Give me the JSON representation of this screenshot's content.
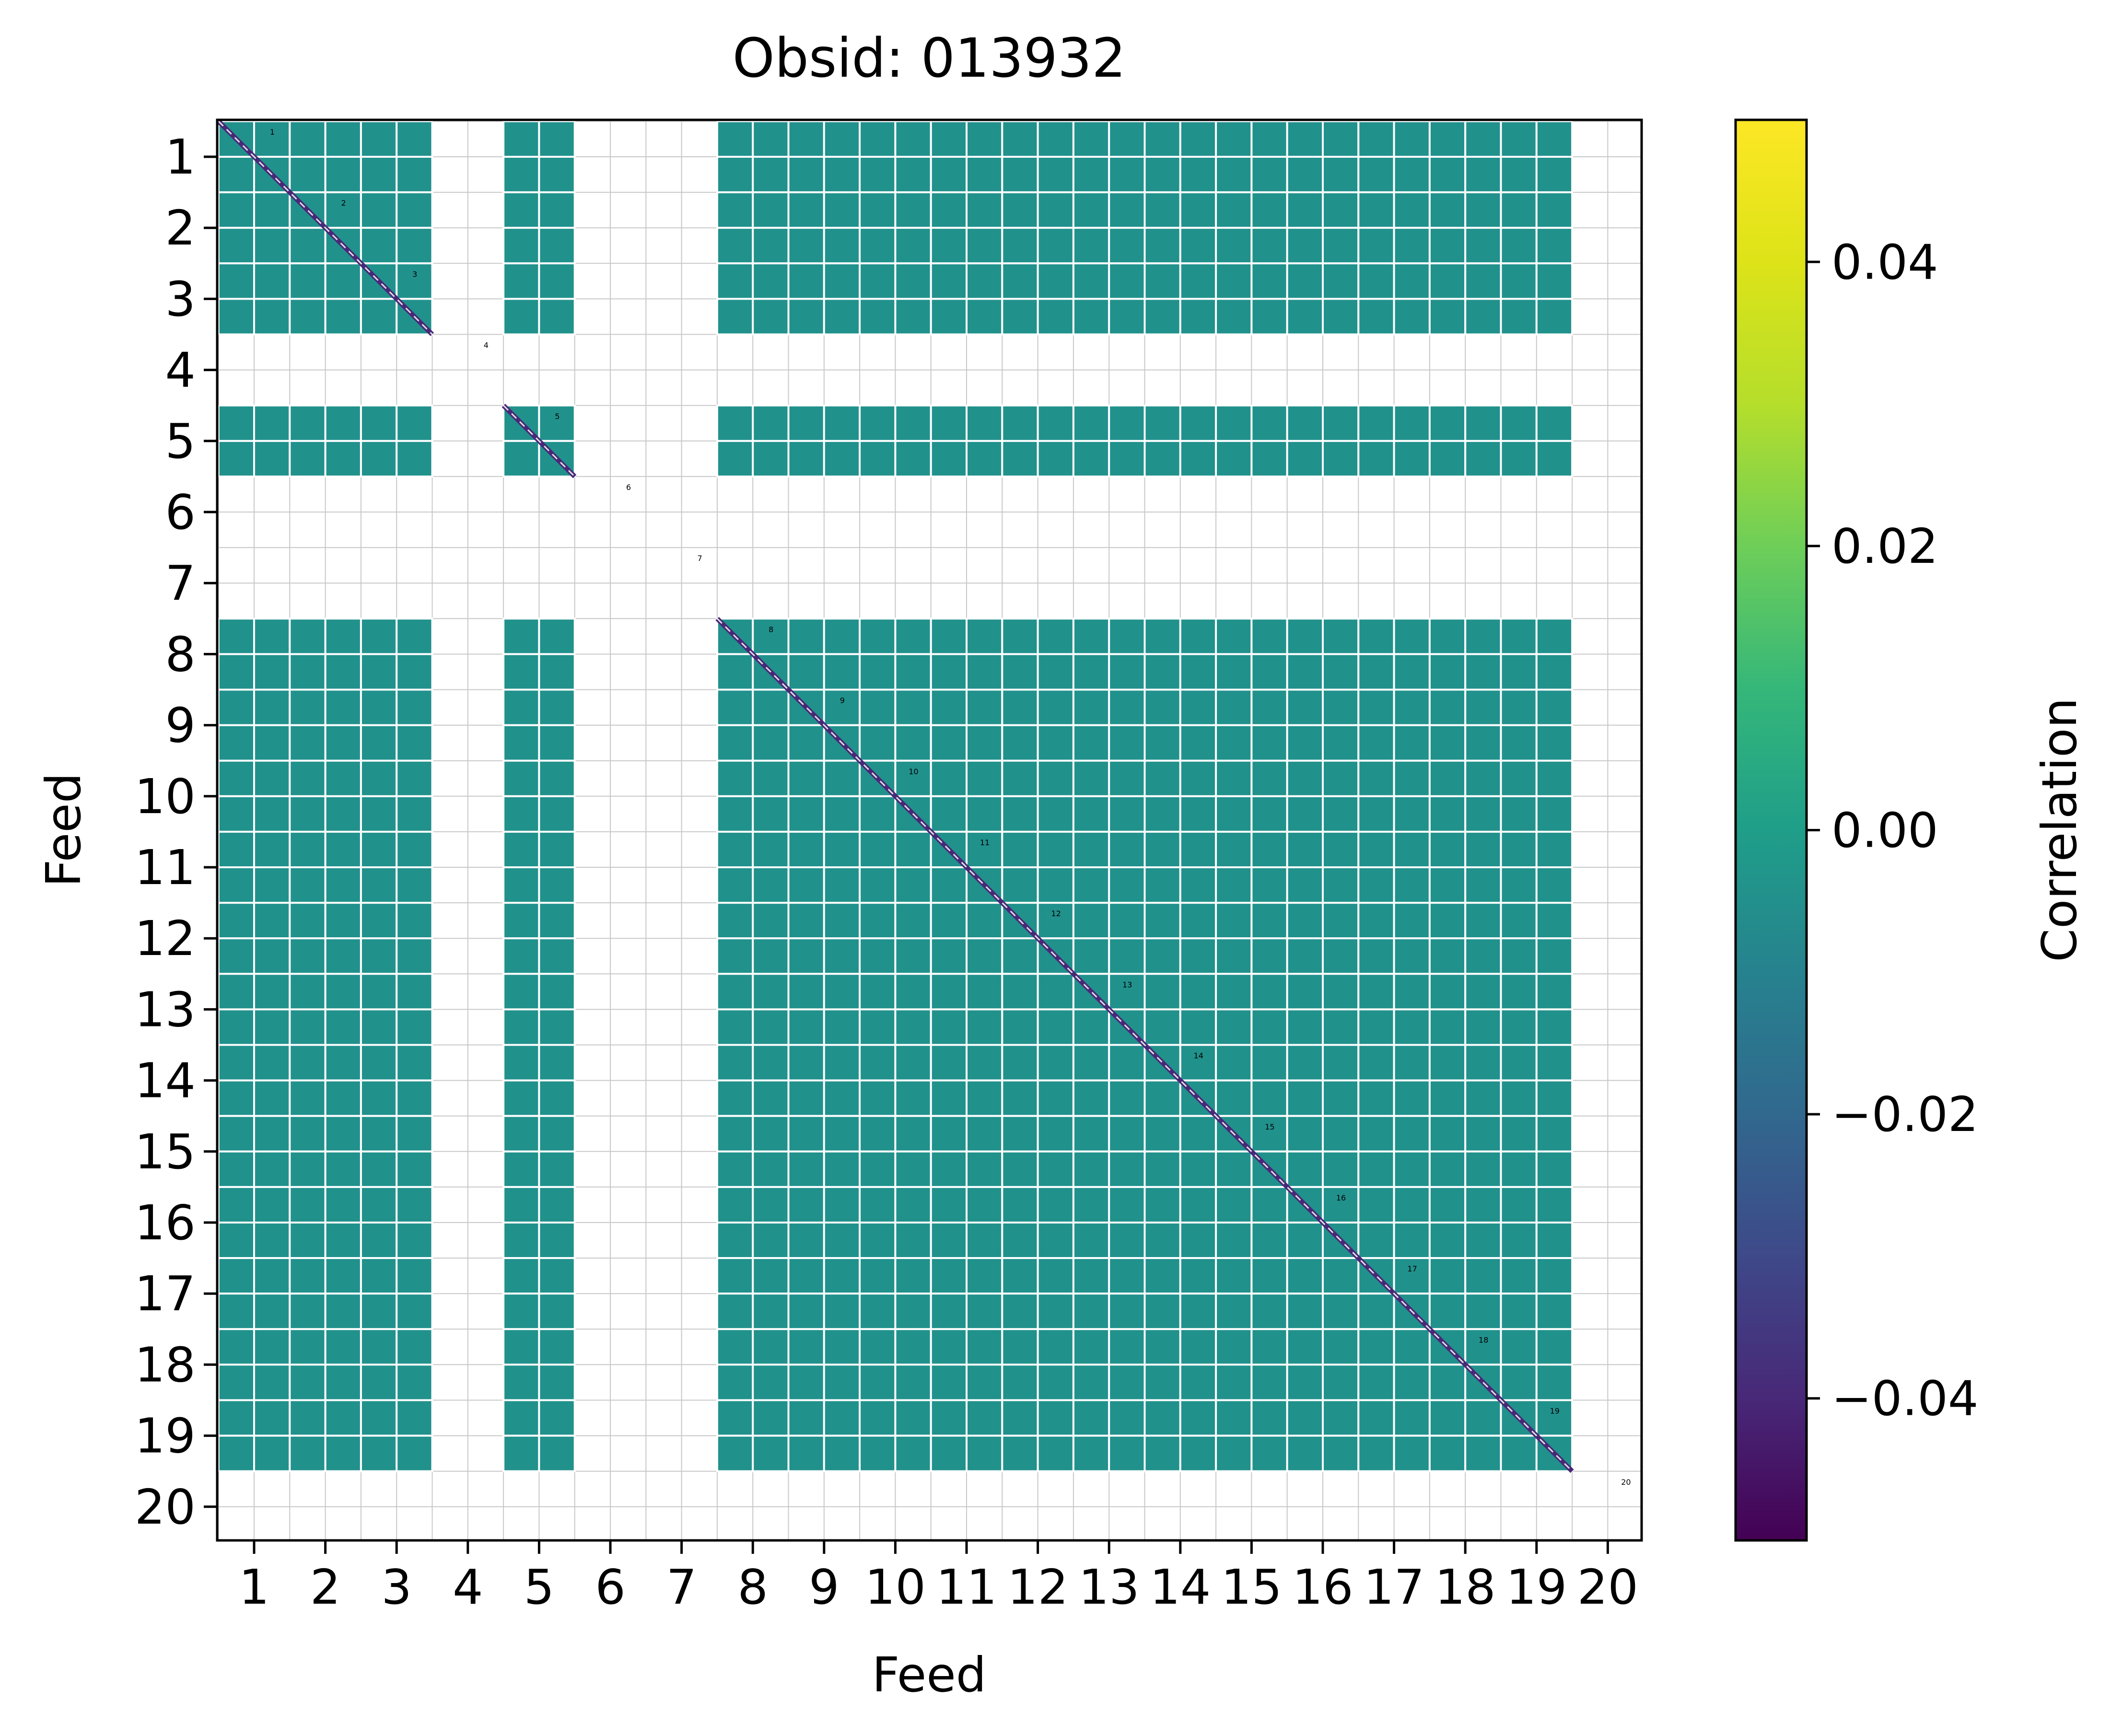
{
  "chart_data": {
    "type": "heatmap",
    "title": "Obsid: 013932",
    "xlabel": "Feed",
    "ylabel": "Feed",
    "x_tick_labels": [
      "1",
      "2",
      "3",
      "4",
      "5",
      "6",
      "7",
      "8",
      "9",
      "10",
      "11",
      "12",
      "13",
      "14",
      "15",
      "16",
      "17",
      "18",
      "19",
      "20"
    ],
    "y_tick_labels": [
      "1",
      "2",
      "3",
      "4",
      "5",
      "6",
      "7",
      "8",
      "9",
      "10",
      "11",
      "12",
      "13",
      "14",
      "15",
      "16",
      "17",
      "18",
      "19",
      "20"
    ],
    "diagonal_labels": [
      "1",
      "2",
      "3",
      "4",
      "5",
      "6",
      "7",
      "8",
      "9",
      "10",
      "11",
      "12",
      "13",
      "14",
      "15",
      "16",
      "17",
      "18",
      "19",
      "20"
    ],
    "feeds": [
      1,
      2,
      3,
      4,
      5,
      6,
      7,
      8,
      9,
      10,
      11,
      12,
      13,
      14,
      15,
      16,
      17,
      18,
      19,
      20
    ],
    "active_feeds": [
      1,
      2,
      3,
      5,
      8,
      9,
      10,
      11,
      12,
      13,
      14,
      15,
      16,
      17,
      18,
      19
    ],
    "masked_feeds": [
      4,
      6,
      7,
      20
    ],
    "subblocks_per_feed": 2,
    "off_diagonal_correlation": 0.0,
    "diagonal_correlation": "alternating",
    "colorbar": {
      "label": "Correlation",
      "vmin": -0.05,
      "vmax": 0.05,
      "ticks": [
        -0.04,
        -0.02,
        0.0,
        0.02,
        0.04
      ],
      "tick_labels": [
        "−0.04",
        "−0.02",
        "0.00",
        "0.02",
        "0.04"
      ],
      "colormap": "viridis"
    },
    "grid": true,
    "colors": {
      "cell": "#21918c",
      "grid": "#c8c8c8",
      "separator": "#ffffff",
      "diag_dark": "#482878",
      "diag_light": "#e0e0e0"
    }
  }
}
